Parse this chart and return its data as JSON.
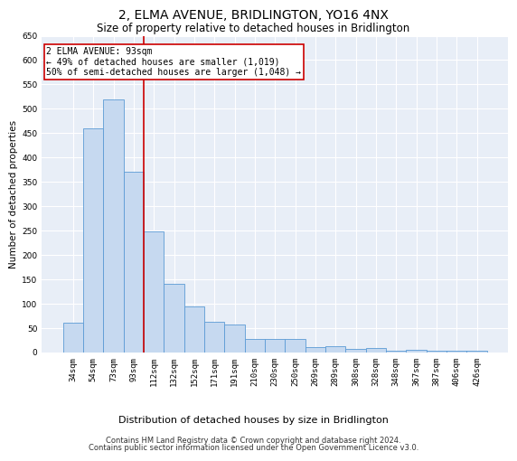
{
  "title": "2, ELMA AVENUE, BRIDLINGTON, YO16 4NX",
  "subtitle": "Size of property relative to detached houses in Bridlington",
  "xlabel": "Distribution of detached houses by size in Bridlington",
  "ylabel": "Number of detached properties",
  "categories": [
    "34sqm",
    "54sqm",
    "73sqm",
    "93sqm",
    "112sqm",
    "132sqm",
    "152sqm",
    "171sqm",
    "191sqm",
    "210sqm",
    "230sqm",
    "250sqm",
    "269sqm",
    "289sqm",
    "308sqm",
    "328sqm",
    "348sqm",
    "367sqm",
    "387sqm",
    "406sqm",
    "426sqm"
  ],
  "values": [
    60,
    460,
    520,
    370,
    248,
    140,
    93,
    62,
    57,
    27,
    27,
    27,
    10,
    12,
    6,
    8,
    3,
    5,
    3,
    2,
    2
  ],
  "bar_color": "#c6d9f0",
  "bar_edge_color": "#5b9bd5",
  "highlight_index": 3,
  "highlight_line_color": "#cc0000",
  "ylim": [
    0,
    650
  ],
  "yticks": [
    0,
    50,
    100,
    150,
    200,
    250,
    300,
    350,
    400,
    450,
    500,
    550,
    600,
    650
  ],
  "annotation_text": "2 ELMA AVENUE: 93sqm\n← 49% of detached houses are smaller (1,019)\n50% of semi-detached houses are larger (1,048) →",
  "annotation_box_color": "#ffffff",
  "annotation_box_edge": "#cc0000",
  "footer_line1": "Contains HM Land Registry data © Crown copyright and database right 2024.",
  "footer_line2": "Contains public sector information licensed under the Open Government Licence v3.0.",
  "background_color": "#ffffff",
  "plot_bg_color": "#e8eef7",
  "grid_color": "#ffffff",
  "title_fontsize": 10,
  "subtitle_fontsize": 8.5,
  "tick_fontsize": 6.5,
  "ylabel_fontsize": 7.5,
  "xlabel_fontsize": 8,
  "footer_fontsize": 6,
  "annotation_fontsize": 7
}
